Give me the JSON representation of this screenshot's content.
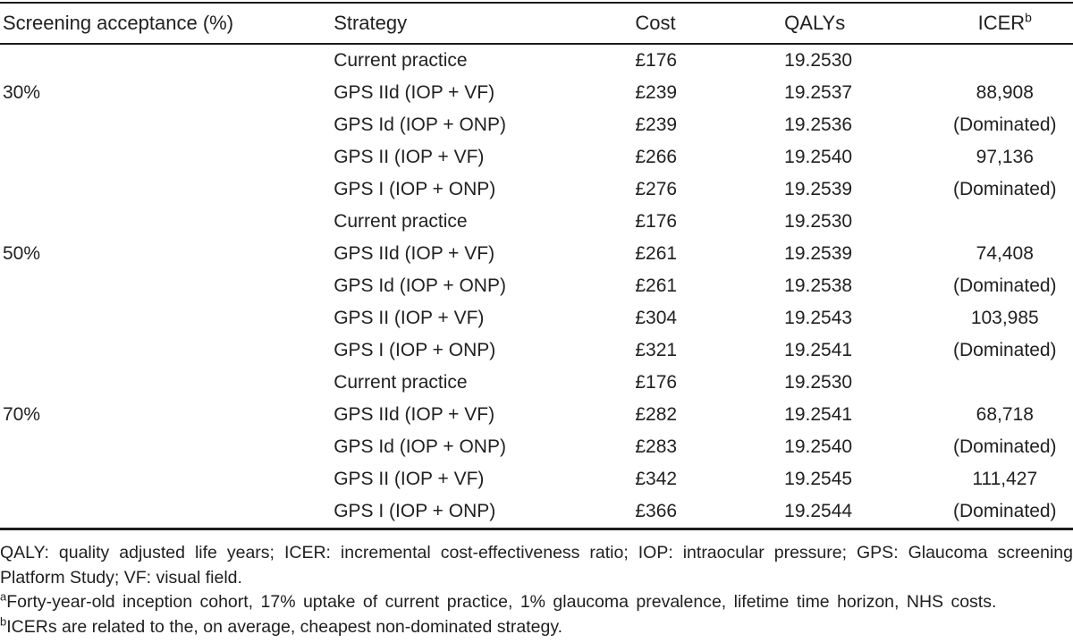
{
  "table": {
    "columns": [
      "Screening acceptance (%)",
      "Strategy",
      "Cost",
      "QALYs",
      "ICER"
    ],
    "icer_superscript": "b",
    "rows": [
      {
        "acceptance": "",
        "strategy": "Current practice",
        "cost": "£176",
        "qalys": "19.2530",
        "icer": ""
      },
      {
        "acceptance": "30%",
        "strategy": "GPS IId (IOP + VF)",
        "cost": "£239",
        "qalys": "19.2537",
        "icer": "88,908"
      },
      {
        "acceptance": "",
        "strategy": "GPS Id (IOP + ONP)",
        "cost": "£239",
        "qalys": "19.2536",
        "icer": "(Dominated)"
      },
      {
        "acceptance": "",
        "strategy": "GPS II (IOP + VF)",
        "cost": "£266",
        "qalys": "19.2540",
        "icer": "97,136"
      },
      {
        "acceptance": "",
        "strategy": "GPS I (IOP + ONP)",
        "cost": "£276",
        "qalys": "19.2539",
        "icer": "(Dominated)"
      },
      {
        "acceptance": "",
        "strategy": "Current practice",
        "cost": "£176",
        "qalys": "19.2530",
        "icer": ""
      },
      {
        "acceptance": "50%",
        "strategy": "GPS IId (IOP + VF)",
        "cost": "£261",
        "qalys": "19.2539",
        "icer": "74,408"
      },
      {
        "acceptance": "",
        "strategy": "GPS Id (IOP + ONP)",
        "cost": "£261",
        "qalys": "19.2538",
        "icer": "(Dominated)"
      },
      {
        "acceptance": "",
        "strategy": "GPS II (IOP + VF)",
        "cost": "£304",
        "qalys": "19.2543",
        "icer": "103,985"
      },
      {
        "acceptance": "",
        "strategy": "GPS I (IOP + ONP)",
        "cost": "£321",
        "qalys": "19.2541",
        "icer": "(Dominated)"
      },
      {
        "acceptance": "",
        "strategy": "Current practice",
        "cost": "£176",
        "qalys": "19.2530",
        "icer": ""
      },
      {
        "acceptance": "70%",
        "strategy": "GPS IId (IOP + VF)",
        "cost": "£282",
        "qalys": "19.2541",
        "icer": "68,718"
      },
      {
        "acceptance": "",
        "strategy": "GPS Id (IOP + ONP)",
        "cost": "£283",
        "qalys": "19.2540",
        "icer": "(Dominated)"
      },
      {
        "acceptance": "",
        "strategy": "GPS II (IOP + VF)",
        "cost": "£342",
        "qalys": "19.2545",
        "icer": "111,427"
      },
      {
        "acceptance": "",
        "strategy": "GPS I (IOP + ONP)",
        "cost": "£366",
        "qalys": "19.2544",
        "icer": "(Dominated)"
      }
    ]
  },
  "footnotes": {
    "abbreviations": "QALY: quality adjusted life years; ICER: incremental cost-effectiveness ratio; IOP: intraocular pressure; GPS: Glaucoma screening Platform Study; VF: visual field.",
    "a": {
      "marker": "a",
      "text": "Forty-year-old inception cohort, 17% uptake of current practice, 1% glaucoma prevalence, lifetime time horizon, NHS costs."
    },
    "b": {
      "marker": "b",
      "text": "ICERs are related to the, on average, cheapest non-dominated strategy."
    }
  },
  "colors": {
    "text": "#212121",
    "rule": "#1c1c1c",
    "background": "#ffffff"
  }
}
